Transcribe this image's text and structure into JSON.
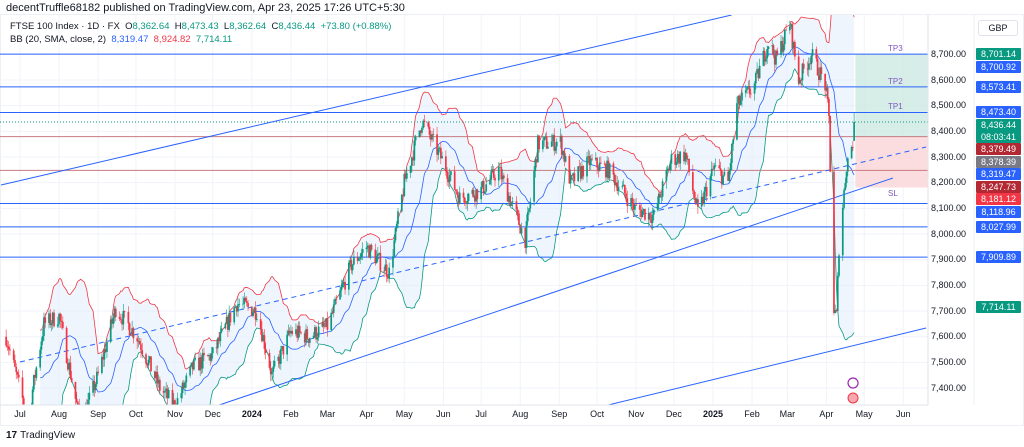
{
  "publisher": "decentTruffle68182 published on TradingView.com, Apr 23, 2025 17:26 UTC+5:30",
  "legend": {
    "symbol": "FTSE 100 Index · 1D · FX",
    "o_label": "O",
    "o": "8,362.64",
    "h_label": "H",
    "h": "8,473.43",
    "l_label": "L",
    "l": "8,362.64",
    "c_label": "C",
    "c": "8,436.44",
    "change": "+73.80 (+0.88%)",
    "bb_label": "BB (20, SMA, close, 2)",
    "bb_basis": "8,319.47",
    "bb_upper": "8,924.82",
    "bb_lower": "7,714.11"
  },
  "currency": "GBP",
  "footer": "TradingView",
  "colors": {
    "up": "#089981",
    "down": "#f23645",
    "basis": "#2962ff",
    "upper": "#f23645",
    "lower": "#089981",
    "band_fill": "#e3effb",
    "level": "#2962ff",
    "tp_zone": "#cde9e1",
    "sl_zone": "#fbd9db"
  },
  "chart_data": {
    "type": "candlestick",
    "title": "FTSE 100 Index · 1D · FX",
    "ylabel": "GBP",
    "ylim": [
      7330,
      8930
    ],
    "y_ticks": [
      "7,400.00",
      "7,500.00",
      "7,600.00",
      "7,700.00",
      "7,800.00",
      "7,900.00",
      "8,000.00",
      "8,100.00",
      "8,200.00",
      "8,300.00",
      "8,400.00",
      "8,500.00",
      "8,600.00",
      "8,700.00"
    ],
    "x_ticks": [
      "Jul",
      "Aug",
      "Sep",
      "Oct",
      "Nov",
      "Dec",
      "2024",
      "Feb",
      "Mar",
      "Apr",
      "May",
      "Jun",
      "Jul",
      "Aug",
      "Sep",
      "Oct",
      "Nov",
      "Dec",
      "2025",
      "Feb",
      "Mar",
      "Apr",
      "May",
      "Jun"
    ],
    "grid": true,
    "approx_closes": [
      [
        "2023-06-20",
        7600
      ],
      [
        "2023-07-07",
        7280
      ],
      [
        "2023-07-20",
        7650
      ],
      [
        "2023-08-01",
        7680
      ],
      [
        "2023-08-18",
        7260
      ],
      [
        "2023-09-01",
        7450
      ],
      [
        "2023-09-15",
        7710
      ],
      [
        "2023-10-02",
        7600
      ],
      [
        "2023-10-20",
        7400
      ],
      [
        "2023-11-01",
        7330
      ],
      [
        "2023-11-15",
        7480
      ],
      [
        "2023-12-01",
        7530
      ],
      [
        "2023-12-20",
        7730
      ],
      [
        "2024-01-05",
        7700
      ],
      [
        "2024-01-17",
        7450
      ],
      [
        "2024-02-01",
        7620
      ],
      [
        "2024-02-15",
        7600
      ],
      [
        "2024-03-01",
        7640
      ],
      [
        "2024-03-20",
        7880
      ],
      [
        "2024-04-01",
        7950
      ],
      [
        "2024-04-19",
        7850
      ],
      [
        "2024-05-01",
        8200
      ],
      [
        "2024-05-15",
        8440
      ],
      [
        "2024-06-01",
        8280
      ],
      [
        "2024-06-14",
        8140
      ],
      [
        "2024-07-01",
        8170
      ],
      [
        "2024-07-15",
        8250
      ],
      [
        "2024-08-05",
        7980
      ],
      [
        "2024-08-15",
        8350
      ],
      [
        "2024-09-02",
        8360
      ],
      [
        "2024-09-10",
        8200
      ],
      [
        "2024-09-25",
        8280
      ],
      [
        "2024-10-10",
        8250
      ],
      [
        "2024-10-31",
        8100
      ],
      [
        "2024-11-15",
        8070
      ],
      [
        "2024-11-29",
        8290
      ],
      [
        "2024-12-10",
        8310
      ],
      [
        "2024-12-20",
        8080
      ],
      [
        "2025-01-02",
        8260
      ],
      [
        "2025-01-13",
        8200
      ],
      [
        "2025-01-20",
        8500
      ],
      [
        "2025-02-03",
        8580
      ],
      [
        "2025-02-14",
        8750
      ],
      [
        "2025-02-20",
        8680
      ],
      [
        "2025-03-03",
        8820
      ],
      [
        "2025-03-10",
        8600
      ],
      [
        "2025-03-20",
        8700
      ],
      [
        "2025-03-31",
        8580
      ],
      [
        "2025-04-03",
        8450
      ],
      [
        "2025-04-07",
        7700
      ],
      [
        "2025-04-09",
        7680
      ],
      [
        "2025-04-11",
        7950
      ],
      [
        "2025-04-17",
        8270
      ],
      [
        "2025-04-22",
        8362.64
      ]
    ],
    "last_bar": {
      "date": "2025-04-23",
      "open": 8362.64,
      "high": 8473.43,
      "low": 8362.64,
      "close": 8436.44
    },
    "bollinger": {
      "length": 20,
      "ma": "SMA",
      "source": "close",
      "mult": 2,
      "basis": 8319.47,
      "upper": 8924.82,
      "lower": 7714.11
    },
    "levels": [
      8700.92,
      8573.41,
      8473.4,
      8379.49,
      8247.73,
      8118.96,
      8027.99,
      7909.89
    ],
    "zones": {
      "entry": 8379.49,
      "targets": [
        {
          "label": "TP1",
          "price": 8473.4
        },
        {
          "label": "TP2",
          "price": 8573.41
        },
        {
          "label": "TP3",
          "price": 8700.92
        }
      ],
      "stop": {
        "label": "SL",
        "price": 8181.12
      }
    },
    "price_tags": [
      {
        "text": "8,701.14",
        "color": "#089981"
      },
      {
        "text": "8,700.92",
        "color": "#2962ff"
      },
      {
        "text": "8,573.41",
        "color": "#2962ff"
      },
      {
        "text": "8,473.40",
        "color": "#2962ff"
      },
      {
        "text": "8,436.44",
        "sub": "08:03:41",
        "color": "#089981"
      },
      {
        "text": "8,379.49",
        "color": "#b22833"
      },
      {
        "text": "8,378.39",
        "color": "#787b86"
      },
      {
        "text": "8,319.47",
        "color": "#2962ff"
      },
      {
        "text": "8,247.73",
        "color": "#b22833"
      },
      {
        "text": "8,181.12",
        "color": "#f23645"
      },
      {
        "text": "8,118.96",
        "color": "#2962ff"
      },
      {
        "text": "8,027.99",
        "color": "#2962ff"
      },
      {
        "text": "7,909.89",
        "color": "#2962ff"
      },
      {
        "text": "7,714.11",
        "color": "#089981"
      }
    ]
  }
}
